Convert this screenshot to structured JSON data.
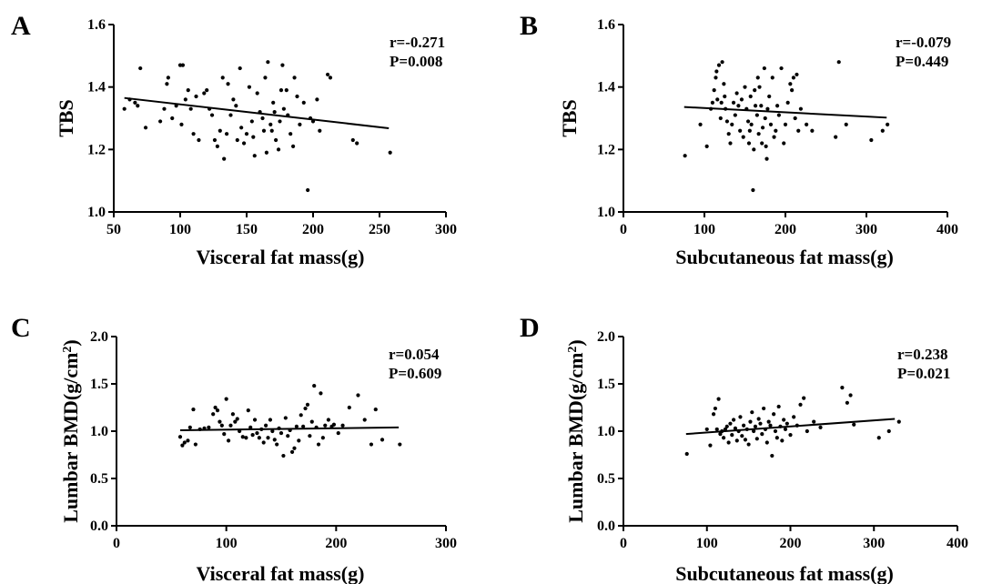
{
  "chart_data": [
    {
      "panel": "A",
      "type": "scatter",
      "xlabel": "Visceral fat mass(g)",
      "ylabel": "TBS",
      "xlim": [
        50,
        300
      ],
      "ylim": [
        1.0,
        1.6
      ],
      "xticks": [
        "50",
        "100",
        "150",
        "200",
        "250",
        "300"
      ],
      "yticks": [
        "1.0",
        "1.2",
        "1.4",
        "1.6"
      ],
      "stats": [
        "r=-0.271",
        "P=0.008"
      ],
      "regression": {
        "x": [
          58,
          257
        ],
        "y": [
          1.365,
          1.268
        ]
      },
      "points": [
        [
          58,
          1.33
        ],
        [
          62,
          1.36
        ],
        [
          66,
          1.35
        ],
        [
          68,
          1.34
        ],
        [
          70,
          1.46
        ],
        [
          74,
          1.27
        ],
        [
          85,
          1.29
        ],
        [
          88,
          1.33
        ],
        [
          90,
          1.41
        ],
        [
          91,
          1.43
        ],
        [
          94,
          1.3
        ],
        [
          97,
          1.34
        ],
        [
          100,
          1.47
        ],
        [
          101,
          1.28
        ],
        [
          102,
          1.47
        ],
        [
          104,
          1.36
        ],
        [
          106,
          1.39
        ],
        [
          108,
          1.33
        ],
        [
          110,
          1.25
        ],
        [
          112,
          1.37
        ],
        [
          114,
          1.23
        ],
        [
          118,
          1.38
        ],
        [
          120,
          1.39
        ],
        [
          122,
          1.33
        ],
        [
          124,
          1.31
        ],
        [
          126,
          1.23
        ],
        [
          128,
          1.21
        ],
        [
          130,
          1.26
        ],
        [
          132,
          1.43
        ],
        [
          133,
          1.17
        ],
        [
          135,
          1.25
        ],
        [
          136,
          1.41
        ],
        [
          138,
          1.31
        ],
        [
          140,
          1.36
        ],
        [
          142,
          1.34
        ],
        [
          143,
          1.23
        ],
        [
          145,
          1.46
        ],
        [
          146,
          1.27
        ],
        [
          148,
          1.22
        ],
        [
          150,
          1.25
        ],
        [
          152,
          1.4
        ],
        [
          154,
          1.29
        ],
        [
          155,
          1.24
        ],
        [
          156,
          1.18
        ],
        [
          158,
          1.38
        ],
        [
          160,
          1.32
        ],
        [
          162,
          1.3
        ],
        [
          163,
          1.26
        ],
        [
          164,
          1.43
        ],
        [
          165,
          1.19
        ],
        [
          166,
          1.48
        ],
        [
          168,
          1.28
        ],
        [
          169,
          1.26
        ],
        [
          170,
          1.35
        ],
        [
          171,
          1.32
        ],
        [
          172,
          1.23
        ],
        [
          174,
          1.2
        ],
        [
          175,
          1.29
        ],
        [
          176,
          1.39
        ],
        [
          177,
          1.47
        ],
        [
          178,
          1.33
        ],
        [
          180,
          1.39
        ],
        [
          181,
          1.31
        ],
        [
          183,
          1.25
        ],
        [
          185,
          1.21
        ],
        [
          186,
          1.43
        ],
        [
          188,
          1.37
        ],
        [
          190,
          1.28
        ],
        [
          193,
          1.35
        ],
        [
          196,
          1.07
        ],
        [
          198,
          1.3
        ],
        [
          200,
          1.29
        ],
        [
          203,
          1.36
        ],
        [
          205,
          1.26
        ],
        [
          211,
          1.44
        ],
        [
          213,
          1.43
        ],
        [
          230,
          1.23
        ],
        [
          233,
          1.22
        ],
        [
          258,
          1.19
        ]
      ]
    },
    {
      "panel": "B",
      "type": "scatter",
      "xlabel": "Subcutaneous fat mass(g)",
      "ylabel": "TBS",
      "xlim": [
        0,
        400
      ],
      "ylim": [
        1.0,
        1.6
      ],
      "xticks": [
        "0",
        "100",
        "200",
        "300",
        "400"
      ],
      "yticks": [
        "1.0",
        "1.2",
        "1.4",
        "1.6"
      ],
      "stats": [
        "r=-0.079",
        "P=0.449"
      ],
      "regression": {
        "x": [
          75,
          325
        ],
        "y": [
          1.336,
          1.302
        ]
      },
      "points": [
        [
          76,
          1.18
        ],
        [
          95,
          1.28
        ],
        [
          103,
          1.21
        ],
        [
          108,
          1.33
        ],
        [
          110,
          1.35
        ],
        [
          112,
          1.39
        ],
        [
          114,
          1.43
        ],
        [
          115,
          1.45
        ],
        [
          116,
          1.36
        ],
        [
          118,
          1.47
        ],
        [
          120,
          1.3
        ],
        [
          121,
          1.35
        ],
        [
          122,
          1.48
        ],
        [
          124,
          1.41
        ],
        [
          125,
          1.37
        ],
        [
          126,
          1.33
        ],
        [
          128,
          1.29
        ],
        [
          130,
          1.25
        ],
        [
          132,
          1.22
        ],
        [
          134,
          1.28
        ],
        [
          136,
          1.35
        ],
        [
          138,
          1.31
        ],
        [
          140,
          1.38
        ],
        [
          142,
          1.34
        ],
        [
          144,
          1.26
        ],
        [
          146,
          1.36
        ],
        [
          148,
          1.24
        ],
        [
          150,
          1.4
        ],
        [
          152,
          1.33
        ],
        [
          154,
          1.29
        ],
        [
          155,
          1.22
        ],
        [
          156,
          1.26
        ],
        [
          157,
          1.37
        ],
        [
          158,
          1.28
        ],
        [
          160,
          1.07
        ],
        [
          161,
          1.2
        ],
        [
          162,
          1.39
        ],
        [
          163,
          1.34
        ],
        [
          165,
          1.31
        ],
        [
          166,
          1.43
        ],
        [
          167,
          1.25
        ],
        [
          168,
          1.4
        ],
        [
          170,
          1.34
        ],
        [
          171,
          1.22
        ],
        [
          172,
          1.27
        ],
        [
          174,
          1.46
        ],
        [
          175,
          1.3
        ],
        [
          176,
          1.21
        ],
        [
          177,
          1.17
        ],
        [
          178,
          1.33
        ],
        [
          180,
          1.37
        ],
        [
          182,
          1.28
        ],
        [
          184,
          1.43
        ],
        [
          186,
          1.24
        ],
        [
          188,
          1.26
        ],
        [
          190,
          1.34
        ],
        [
          192,
          1.31
        ],
        [
          195,
          1.46
        ],
        [
          198,
          1.22
        ],
        [
          200,
          1.28
        ],
        [
          203,
          1.35
        ],
        [
          206,
          1.41
        ],
        [
          208,
          1.39
        ],
        [
          210,
          1.43
        ],
        [
          212,
          1.3
        ],
        [
          214,
          1.44
        ],
        [
          216,
          1.26
        ],
        [
          219,
          1.33
        ],
        [
          226,
          1.28
        ],
        [
          233,
          1.26
        ],
        [
          262,
          1.24
        ],
        [
          266,
          1.48
        ],
        [
          275,
          1.28
        ],
        [
          306,
          1.23
        ],
        [
          320,
          1.26
        ],
        [
          326,
          1.28
        ]
      ]
    },
    {
      "panel": "C",
      "type": "scatter",
      "xlabel": "Visceral fat mass(g)",
      "ylabel": "Lumbar BMD(g/cm",
      "ylabel_superscript": "2",
      "ylabel_suffix": ")",
      "xlim": [
        0,
        300
      ],
      "ylim": [
        0.0,
        2.0
      ],
      "xticks": [
        "0",
        "100",
        "200",
        "300"
      ],
      "yticks": [
        "0.0",
        "0.5",
        "1.0",
        "1.5",
        "2.0"
      ],
      "stats": [
        "r=0.054",
        "P=0.609"
      ],
      "regression": {
        "x": [
          58,
          257
        ],
        "y": [
          1.01,
          1.04
        ]
      },
      "points": [
        [
          58,
          0.94
        ],
        [
          60,
          0.85
        ],
        [
          62,
          0.88
        ],
        [
          65,
          0.9
        ],
        [
          67,
          1.04
        ],
        [
          70,
          1.23
        ],
        [
          72,
          0.86
        ],
        [
          76,
          1.02
        ],
        [
          80,
          1.03
        ],
        [
          84,
          1.04
        ],
        [
          88,
          1.18
        ],
        [
          90,
          1.25
        ],
        [
          92,
          1.22
        ],
        [
          94,
          1.1
        ],
        [
          96,
          1.06
        ],
        [
          98,
          0.97
        ],
        [
          100,
          1.34
        ],
        [
          102,
          0.9
        ],
        [
          104,
          1.06
        ],
        [
          106,
          1.18
        ],
        [
          108,
          1.1
        ],
        [
          110,
          1.13
        ],
        [
          112,
          1.0
        ],
        [
          115,
          0.94
        ],
        [
          118,
          0.93
        ],
        [
          120,
          1.22
        ],
        [
          122,
          1.04
        ],
        [
          124,
          0.96
        ],
        [
          126,
          1.12
        ],
        [
          128,
          0.98
        ],
        [
          130,
          0.93
        ],
        [
          132,
          1.02
        ],
        [
          134,
          0.88
        ],
        [
          136,
          1.06
        ],
        [
          138,
          0.93
        ],
        [
          140,
          1.12
        ],
        [
          142,
          1.0
        ],
        [
          144,
          0.91
        ],
        [
          146,
          0.86
        ],
        [
          148,
          1.03
        ],
        [
          150,
          0.98
        ],
        [
          152,
          0.74
        ],
        [
          154,
          1.14
        ],
        [
          156,
          0.95
        ],
        [
          158,
          1.01
        ],
        [
          160,
          0.78
        ],
        [
          162,
          0.82
        ],
        [
          164,
          1.05
        ],
        [
          166,
          0.9
        ],
        [
          168,
          1.17
        ],
        [
          170,
          1.05
        ],
        [
          172,
          1.24
        ],
        [
          174,
          1.28
        ],
        [
          176,
          0.95
        ],
        [
          178,
          1.1
        ],
        [
          180,
          1.48
        ],
        [
          182,
          1.04
        ],
        [
          184,
          0.86
        ],
        [
          186,
          1.4
        ],
        [
          188,
          0.93
        ],
        [
          190,
          1.06
        ],
        [
          193,
          1.12
        ],
        [
          196,
          1.05
        ],
        [
          198,
          1.07
        ],
        [
          202,
          0.98
        ],
        [
          206,
          1.06
        ],
        [
          212,
          1.25
        ],
        [
          220,
          1.38
        ],
        [
          226,
          1.12
        ],
        [
          232,
          0.86
        ],
        [
          236,
          1.23
        ],
        [
          242,
          0.91
        ],
        [
          258,
          0.86
        ]
      ]
    },
    {
      "panel": "D",
      "type": "scatter",
      "xlabel": "Subcutaneous fat mass(g)",
      "ylabel": "Lumbar BMD(g/cm",
      "ylabel_superscript": "2",
      "ylabel_suffix": ")",
      "xlim": [
        0,
        400
      ],
      "ylim": [
        0.0,
        2.0
      ],
      "xticks": [
        "0",
        "100",
        "200",
        "300",
        "400"
      ],
      "yticks": [
        "0.0",
        "0.5",
        "1.0",
        "1.5",
        "2.0"
      ],
      "stats": [
        "r=0.238",
        "P=0.021"
      ],
      "regression": {
        "x": [
          75,
          325
        ],
        "y": [
          0.97,
          1.13
        ]
      },
      "points": [
        [
          76,
          0.76
        ],
        [
          100,
          1.02
        ],
        [
          104,
          0.85
        ],
        [
          108,
          1.18
        ],
        [
          110,
          1.24
        ],
        [
          112,
          1.02
        ],
        [
          114,
          1.34
        ],
        [
          116,
          0.97
        ],
        [
          118,
          1.0
        ],
        [
          120,
          0.93
        ],
        [
          122,
          1.02
        ],
        [
          124,
          1.05
        ],
        [
          126,
          0.88
        ],
        [
          128,
          1.08
        ],
        [
          130,
          0.96
        ],
        [
          132,
          1.12
        ],
        [
          134,
          1.03
        ],
        [
          136,
          0.9
        ],
        [
          138,
          1.0
        ],
        [
          140,
          1.15
        ],
        [
          142,
          0.95
        ],
        [
          144,
          1.06
        ],
        [
          146,
          0.91
        ],
        [
          148,
          1.02
        ],
        [
          150,
          0.86
        ],
        [
          152,
          1.1
        ],
        [
          154,
          1.2
        ],
        [
          156,
          1.0
        ],
        [
          158,
          1.05
        ],
        [
          160,
          0.92
        ],
        [
          162,
          1.13
        ],
        [
          164,
          1.08
        ],
        [
          166,
          0.97
        ],
        [
          168,
          1.24
        ],
        [
          170,
          1.02
        ],
        [
          172,
          0.88
        ],
        [
          174,
          1.1
        ],
        [
          176,
          1.06
        ],
        [
          178,
          0.74
        ],
        [
          180,
          1.18
        ],
        [
          182,
          1.0
        ],
        [
          184,
          0.93
        ],
        [
          186,
          1.26
        ],
        [
          188,
          1.05
        ],
        [
          190,
          0.9
        ],
        [
          192,
          1.12
        ],
        [
          194,
          1.02
        ],
        [
          196,
          1.08
        ],
        [
          200,
          0.96
        ],
        [
          204,
          1.15
        ],
        [
          208,
          1.06
        ],
        [
          212,
          1.28
        ],
        [
          216,
          1.35
        ],
        [
          220,
          1.0
        ],
        [
          228,
          1.1
        ],
        [
          236,
          1.04
        ],
        [
          262,
          1.46
        ],
        [
          268,
          1.3
        ],
        [
          272,
          1.38
        ],
        [
          276,
          1.07
        ],
        [
          306,
          0.93
        ],
        [
          318,
          1.0
        ],
        [
          330,
          1.1
        ]
      ]
    }
  ],
  "panels": [
    {
      "label": "A"
    },
    {
      "label": "B"
    },
    {
      "label": "C"
    },
    {
      "label": "D"
    }
  ]
}
